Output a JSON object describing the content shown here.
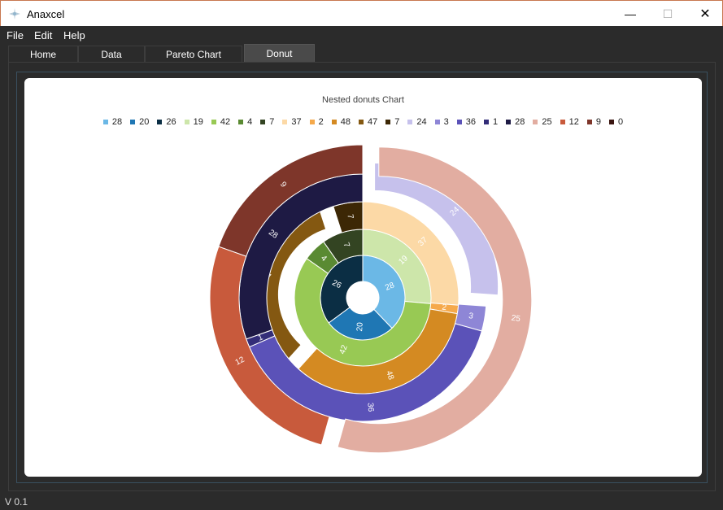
{
  "window": {
    "title": "Anaxcel",
    "minimize_glyph": "—",
    "maximize_glyph": "☐",
    "close_glyph": "✕"
  },
  "menu": [
    {
      "label": "File"
    },
    {
      "label": "Edit"
    },
    {
      "label": "Help"
    }
  ],
  "tabs": [
    {
      "label": "Home",
      "active": false
    },
    {
      "label": "Data",
      "active": false
    },
    {
      "label": "Pareto Chart",
      "active": false
    },
    {
      "label": "Donut",
      "active": true
    }
  ],
  "status": {
    "version": "V 0.1"
  },
  "chart_data": {
    "type": "pie",
    "title": "Nested donuts Chart",
    "legend_placement": "top",
    "legend": [
      {
        "label": "28",
        "color": "#6bb8e6"
      },
      {
        "label": "20",
        "color": "#1f77b4"
      },
      {
        "label": "26",
        "color": "#0b2e44"
      },
      {
        "label": "19",
        "color": "#cde6aa"
      },
      {
        "label": "42",
        "color": "#98c954"
      },
      {
        "label": "4",
        "color": "#5a8a32"
      },
      {
        "label": "7",
        "color": "#334422"
      },
      {
        "label": "37",
        "color": "#fcd9a6"
      },
      {
        "label": "2",
        "color": "#f5a94b"
      },
      {
        "label": "48",
        "color": "#d48a22"
      },
      {
        "label": "47",
        "color": "#845811"
      },
      {
        "label": "7",
        "color": "#3c2705"
      },
      {
        "label": "24",
        "color": "#c6c1ec"
      },
      {
        "label": "3",
        "color": "#8e86d6"
      },
      {
        "label": "36",
        "color": "#5b52b8"
      },
      {
        "label": "1",
        "color": "#332d78"
      },
      {
        "label": "28",
        "color": "#1e1a44"
      },
      {
        "label": "25",
        "color": "#e2ada1"
      },
      {
        "label": "12",
        "color": "#c85a3c"
      },
      {
        "label": "9",
        "color": "#7e362a"
      },
      {
        "label": "0",
        "color": "#3a1510"
      }
    ],
    "rings": [
      {
        "name": "",
        "slices": [
          {
            "label": "28",
            "value": 28,
            "color": "#6bb8e6",
            "exploded": false
          },
          {
            "label": "20",
            "value": 20,
            "color": "#1f77b4",
            "exploded": false
          },
          {
            "label": "26",
            "value": 26,
            "color": "#0b2e44",
            "exploded": false
          }
        ]
      },
      {
        "name": "",
        "slices": [
          {
            "label": "19",
            "value": 19,
            "color": "#cde6aa",
            "exploded": false
          },
          {
            "label": "42",
            "value": 42,
            "color": "#98c954",
            "exploded": false
          },
          {
            "label": "4",
            "value": 4,
            "color": "#5a8a32",
            "exploded": false
          },
          {
            "label": "7",
            "value": 7,
            "color": "#334422",
            "exploded": false
          }
        ]
      },
      {
        "name": "",
        "slices": [
          {
            "label": "37",
            "value": 37,
            "color": "#fcd9a6",
            "exploded": false
          },
          {
            "label": "2",
            "value": 2,
            "color": "#f5a94b",
            "exploded": false
          },
          {
            "label": "48",
            "value": 48,
            "color": "#d48a22",
            "exploded": false
          },
          {
            "label": "47",
            "value": 47,
            "color": "#845811",
            "exploded": true
          },
          {
            "label": "7",
            "value": 7,
            "color": "#3c2705",
            "exploded": false
          }
        ]
      },
      {
        "name": "",
        "slices": [
          {
            "label": "24",
            "value": 24,
            "color": "#c6c1ec",
            "exploded": true
          },
          {
            "label": "3",
            "value": 3,
            "color": "#8e86d6",
            "exploded": false
          },
          {
            "label": "36",
            "value": 36,
            "color": "#5b52b8",
            "exploded": false
          },
          {
            "label": "1",
            "value": 1,
            "color": "#332d78",
            "exploded": false
          },
          {
            "label": "28",
            "value": 28,
            "color": "#1e1a44",
            "exploded": false
          }
        ]
      },
      {
        "name": "",
        "slices": [
          {
            "label": "25",
            "value": 25,
            "color": "#e2ada1",
            "exploded": true
          },
          {
            "label": "12",
            "value": 12,
            "color": "#c85a3c",
            "exploded": false
          },
          {
            "label": "9",
            "value": 9,
            "color": "#7e362a",
            "exploded": false
          },
          {
            "label": "0",
            "value": 0,
            "color": "#3a1510",
            "exploded": false
          }
        ]
      }
    ]
  }
}
